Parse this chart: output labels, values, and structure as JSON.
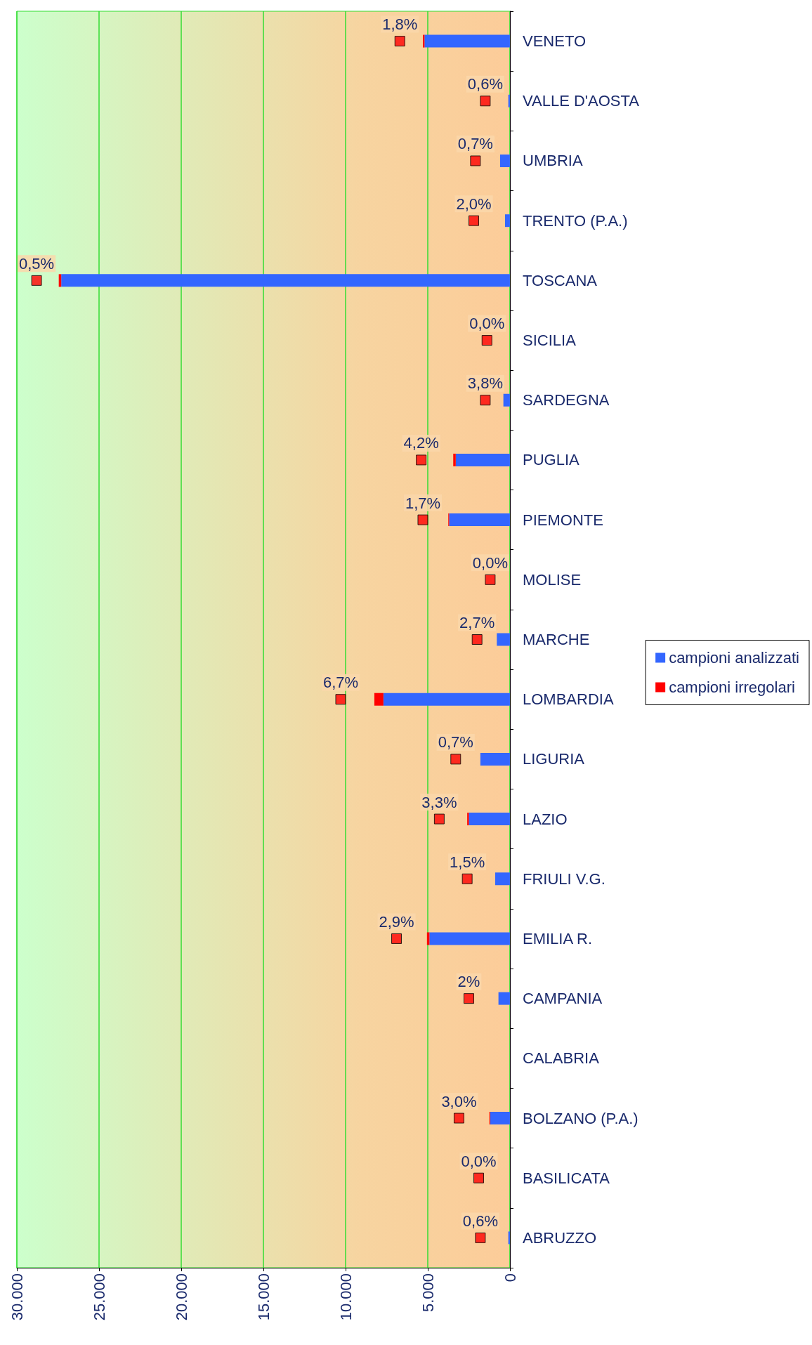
{
  "chart_data": {
    "type": "bar",
    "orientation": "horizontal",
    "stacked": true,
    "categories": [
      "VENETO",
      "VALLE D'AOSTA",
      "UMBRIA",
      "TRENTO (P.A.)",
      "TOSCANA",
      "SICILIA",
      "SARDEGNA",
      "PUGLIA",
      "PIEMONTE",
      "MOLISE",
      "MARCHE",
      "LOMBARDIA",
      "LIGURIA",
      "LAZIO",
      "FRIULI V.G.",
      "EMILIA R.",
      "CAMPANIA",
      "CALABRIA",
      "BOLZANO (P.A.)",
      "BASILICATA",
      "ABRUZZO"
    ],
    "series": [
      {
        "name": "campioni analizzati",
        "color": "#3366ff",
        "values": [
          5200,
          100,
          600,
          300,
          27300,
          0,
          400,
          3300,
          3700,
          0,
          800,
          7700,
          1800,
          2500,
          900,
          4900,
          700,
          null,
          1200,
          0,
          100
        ]
      },
      {
        "name": "campioni irregolari",
        "color": "#ff0000",
        "values": [
          100,
          0,
          0,
          0,
          150,
          0,
          0,
          150,
          50,
          0,
          0,
          550,
          0,
          100,
          0,
          150,
          0,
          null,
          50,
          0,
          0
        ]
      },
      {
        "type": "scatter",
        "color": "#ff0000",
        "values": [
          6700,
          1500,
          2100,
          2200,
          28800,
          1400,
          1500,
          5400,
          5300,
          1200,
          2000,
          10300,
          3300,
          4300,
          2600,
          6900,
          2500,
          null,
          3100,
          1900,
          1800
        ]
      }
    ],
    "annotations": [
      {
        "text": "1,8%",
        "x": 6700,
        "y": "VENETO"
      },
      {
        "text": "0,6%",
        "x": 1500,
        "y": "VALLE D'AOSTA"
      },
      {
        "text": "0,7%",
        "x": 2100,
        "y": "UMBRIA"
      },
      {
        "text": "2,0%",
        "x": 2200,
        "y": "TRENTO (P.A.)"
      },
      {
        "text": "0,5%",
        "x": 28800,
        "y": "TOSCANA"
      },
      {
        "text": "0,0%",
        "x": 1400,
        "y": "SICILIA"
      },
      {
        "text": "3,8%",
        "x": 1500,
        "y": "SARDEGNA"
      },
      {
        "text": "4,2%",
        "x": 5400,
        "y": "PUGLIA"
      },
      {
        "text": "1,7%",
        "x": 5300,
        "y": "PIEMONTE"
      },
      {
        "text": "0,0%",
        "x": 1200,
        "y": "MOLISE"
      },
      {
        "text": "2,7%",
        "x": 2000,
        "y": "MARCHE"
      },
      {
        "text": "6,7%",
        "x": 10300,
        "y": "LOMBARDIA"
      },
      {
        "text": "0,7%",
        "x": 3300,
        "y": "LIGURIA"
      },
      {
        "text": "3,3%",
        "x": 4300,
        "y": "LAZIO"
      },
      {
        "text": "1,5%",
        "x": 2600,
        "y": "FRIULI V.G."
      },
      {
        "text": "2,9%",
        "x": 6900,
        "y": "EMILIA R."
      },
      {
        "text": "2%",
        "x": 2500,
        "y": "CAMPANIA"
      },
      {
        "text": "3,0%",
        "x": 3100,
        "y": "BOLZANO (P.A.)"
      },
      {
        "text": "0,0%",
        "x": 1900,
        "y": "BASILICATA"
      },
      {
        "text": "0,6%",
        "x": 1800,
        "y": "ABRUZZO"
      }
    ],
    "xlim": [
      30000,
      0
    ],
    "xticks": [
      {
        "value": 30000,
        "label": "30.000"
      },
      {
        "value": 25000,
        "label": "25.000"
      },
      {
        "value": 20000,
        "label": "20.000"
      },
      {
        "value": 15000,
        "label": "15.000"
      },
      {
        "value": 10000,
        "label": "10.000"
      },
      {
        "value": 5000,
        "label": "5.000"
      },
      0
    ],
    "grid": "x",
    "legend": "right",
    "marker": "square"
  }
}
